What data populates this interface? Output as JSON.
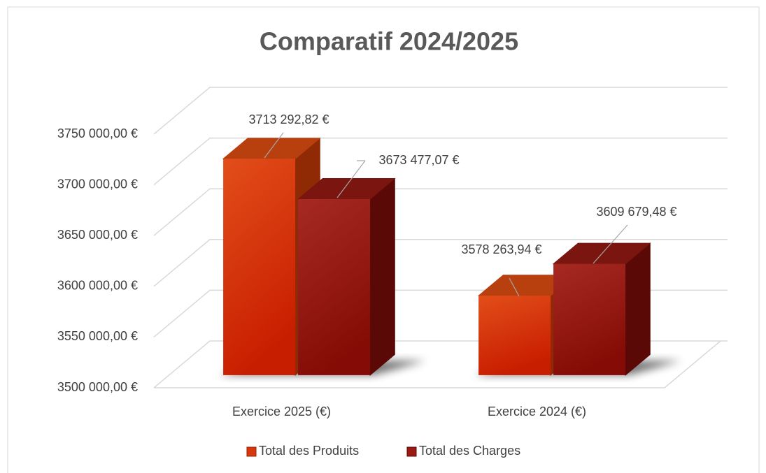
{
  "chart_data": {
    "type": "bar3d",
    "title": "Comparatif 2024/2025",
    "categories": [
      "Exercice 2025 (€)",
      "Exercice 2024 (€)"
    ],
    "series": [
      {
        "name": "Total des Produits",
        "color": "#d8360c",
        "values": [
          3713292.82,
          3578263.94
        ],
        "value_labels": [
          "3713 292,82 €",
          "3578 263,94 €"
        ]
      },
      {
        "name": "Total des Charges",
        "color": "#9a1a14",
        "values": [
          3673477.07,
          3609679.48
        ],
        "value_labels": [
          "3673 477,07 €",
          "3609 679,48 €"
        ]
      }
    ],
    "ylim": [
      3500000,
      3750000
    ],
    "yticks": [
      {
        "value": 3500000,
        "label": "3500 000,00 €"
      },
      {
        "value": 3550000,
        "label": "3550 000,00 €"
      },
      {
        "value": 3600000,
        "label": "3600 000,00 €"
      },
      {
        "value": 3650000,
        "label": "3650 000,00 €"
      },
      {
        "value": 3700000,
        "label": "3700 000,00 €"
      },
      {
        "value": 3750000,
        "label": "3750 000,00 €"
      }
    ],
    "grid": true,
    "legend": "bottom"
  }
}
